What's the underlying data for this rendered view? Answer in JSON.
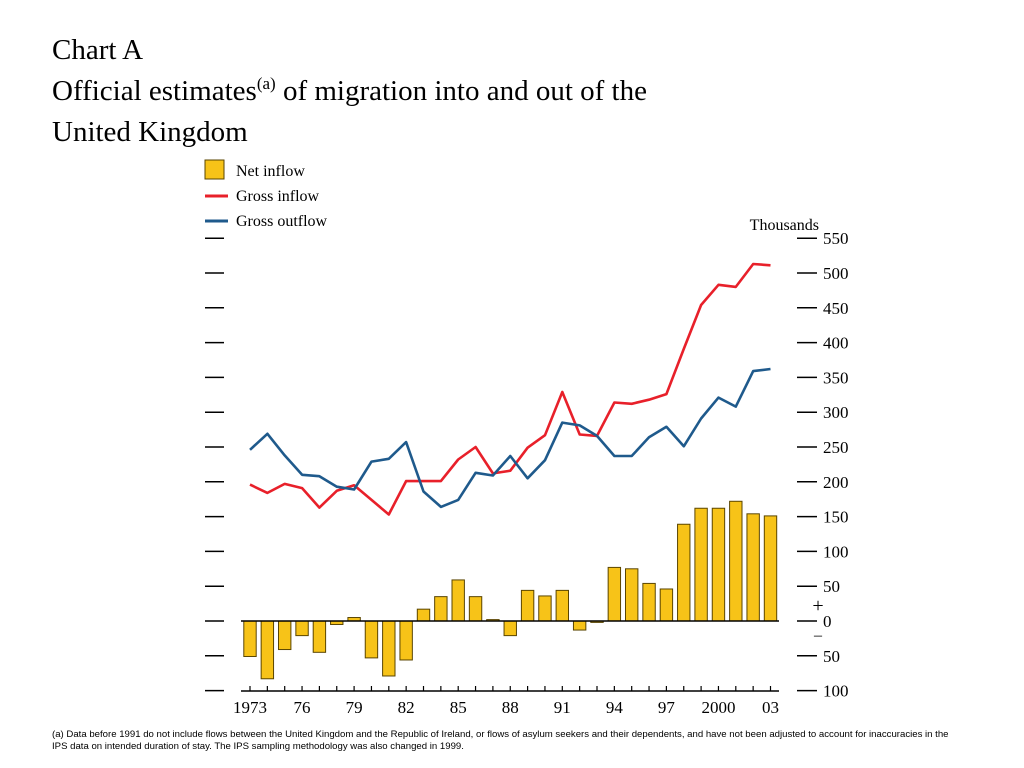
{
  "title": {
    "chart_label": "Chart A",
    "line2_before": "Official estimates",
    "line2_sup": "(a)",
    "line2_after": " of migration into and out of the",
    "line3": "United Kingdom"
  },
  "footnote": "(a)  Data before 1991 do not include flows between the United Kingdom and the Republic of Ireland, or flows of asylum seekers and their dependents, and have not been adjusted to account for inaccuracies in the IPS data on intended duration of stay.  The IPS sampling methodology was also changed in 1999.",
  "colors": {
    "net": "#f7c318",
    "net_border": "#5a4500",
    "gross_inflow": "#e8202a",
    "gross_outflow": "#1f5a8c",
    "axis": "#000000"
  },
  "chart_data": {
    "type": "bar+line",
    "unit_label": "Thousands",
    "years": [
      1973,
      1974,
      1975,
      1976,
      1977,
      1978,
      1979,
      1980,
      1981,
      1982,
      1983,
      1984,
      1985,
      1986,
      1987,
      1988,
      1989,
      1990,
      1991,
      1992,
      1993,
      1994,
      1995,
      1996,
      1997,
      1998,
      1999,
      2000,
      2001,
      2002,
      2003
    ],
    "xtick_labels": [
      {
        "year": 1973,
        "label": "1973"
      },
      {
        "year": 1976,
        "label": "76"
      },
      {
        "year": 1979,
        "label": "79"
      },
      {
        "year": 1982,
        "label": "82"
      },
      {
        "year": 1985,
        "label": "85"
      },
      {
        "year": 1988,
        "label": "88"
      },
      {
        "year": 1991,
        "label": "91"
      },
      {
        "year": 1994,
        "label": "94"
      },
      {
        "year": 1997,
        "label": "97"
      },
      {
        "year": 2000,
        "label": "2000"
      },
      {
        "year": 2003,
        "label": "03"
      }
    ],
    "ylim": [
      -100,
      550
    ],
    "ytick_values": [
      550,
      500,
      450,
      400,
      350,
      300,
      250,
      200,
      150,
      100,
      50,
      0,
      -50,
      -100
    ],
    "ytick_labels": [
      "550",
      "500",
      "450",
      "400",
      "350",
      "300",
      "250",
      "200",
      "150",
      "100",
      "50",
      "0",
      "50",
      "100"
    ],
    "sign_labels": {
      "plus": "+",
      "minus": "–"
    },
    "series": [
      {
        "name": "Net inflow",
        "kind": "bar",
        "values": [
          -51,
          -83,
          -41,
          -21,
          -45,
          -5,
          5,
          -53,
          -79,
          -56,
          17,
          35,
          59,
          35,
          2,
          -21,
          44,
          36,
          44,
          -13,
          -2,
          77,
          75,
          54,
          46,
          139,
          162,
          162,
          172,
          154,
          151
        ]
      },
      {
        "name": "Gross inflow",
        "kind": "line",
        "values": [
          196,
          184,
          197,
          191,
          163,
          187,
          195,
          174,
          153,
          201,
          201,
          201,
          232,
          250,
          212,
          216,
          249,
          267,
          329,
          268,
          266,
          314,
          312,
          318,
          326,
          391,
          454,
          483,
          480,
          513,
          511
        ]
      },
      {
        "name": "Gross outflow",
        "kind": "line",
        "values": [
          246,
          269,
          238,
          210,
          208,
          193,
          189,
          229,
          233,
          257,
          186,
          164,
          174,
          213,
          209,
          237,
          205,
          231,
          285,
          281,
          266,
          237,
          237,
          264,
          279,
          251,
          291,
          321,
          308,
          359,
          362
        ]
      }
    ]
  }
}
